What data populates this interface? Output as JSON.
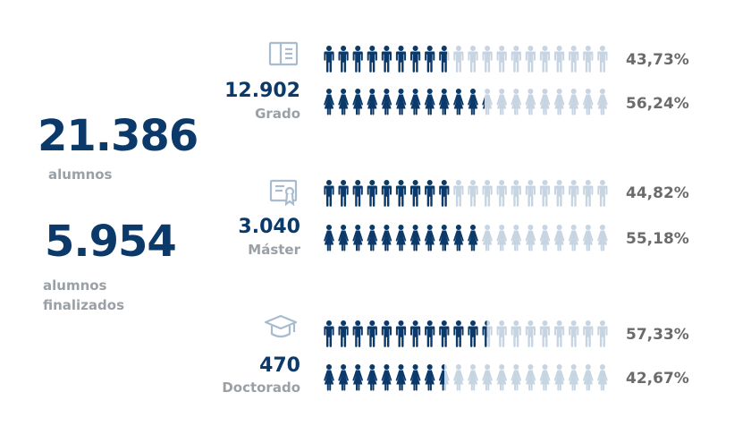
{
  "summary": {
    "total_students_value": "21.386",
    "total_students_label": "alumnos",
    "graduated_value": "5.954",
    "graduated_label_line1": "alumnos",
    "graduated_label_line2": "finalizados"
  },
  "colors": {
    "filled": "#0b3a6a",
    "empty": "#c7d4e1",
    "value_text": "#0b3a6a",
    "label_text": "#9aa0a6",
    "percent_text": "#6b6b6b",
    "icon_outline": "#a9bccf"
  },
  "categories": [
    {
      "icon": "book-icon",
      "value": "12.902",
      "label": "Grado",
      "rows": [
        {
          "figure": "male",
          "percent_label": "43,73%"
        },
        {
          "figure": "female",
          "percent_label": "56,24%"
        }
      ]
    },
    {
      "icon": "certificate-icon",
      "value": "3.040",
      "label": "Máster",
      "rows": [
        {
          "figure": "male",
          "percent_label": "44,82%"
        },
        {
          "figure": "female",
          "percent_label": "55,18%"
        }
      ]
    },
    {
      "icon": "graduation-cap-icon",
      "value": "470",
      "label": "Doctorado",
      "rows": [
        {
          "figure": "male",
          "percent_label": "57,33%"
        },
        {
          "figure": "female",
          "percent_label": "42,67%"
        }
      ]
    }
  ],
  "chart_data": {
    "type": "bar",
    "categories": [
      "Grado",
      "Máster",
      "Doctorado"
    ],
    "series": [
      {
        "values": [
          43.73,
          44.82,
          57.33
        ]
      },
      {
        "values": [
          56.24,
          55.18,
          42.67
        ]
      }
    ],
    "totals": [
      12902,
      3040,
      470
    ],
    "icons_per_row": 20,
    "ylim": [
      0,
      100
    ]
  }
}
